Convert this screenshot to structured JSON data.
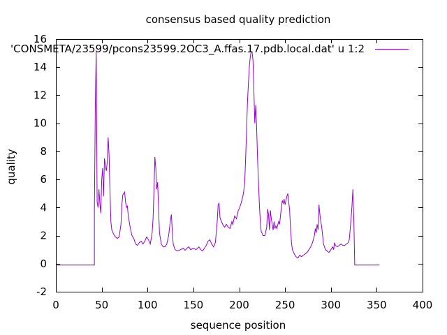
{
  "chart_data": {
    "type": "line",
    "title": "consensus based quality prediction",
    "xlabel": "sequence position",
    "ylabel": "quality",
    "xlim": [
      0,
      400
    ],
    "ylim": [
      -2,
      16
    ],
    "x_ticks": [
      0,
      50,
      100,
      150,
      200,
      250,
      300,
      350,
      400
    ],
    "y_ticks": [
      -2,
      0,
      2,
      4,
      6,
      8,
      10,
      12,
      14,
      16
    ],
    "grid": false,
    "legend_position": "top-right",
    "series": [
      {
        "name": "'CONSMETA/23599/pcons23599.2OC3_A.ffas.17.pdb.local.dat' u 1:2",
        "color": "#9400d3",
        "points": [
          [
            1,
            -0.1
          ],
          [
            42,
            -0.1
          ],
          [
            42,
            3.6
          ],
          [
            43,
            11.2
          ],
          [
            44,
            15.2
          ],
          [
            45,
            4.4
          ],
          [
            46,
            4.0
          ],
          [
            47,
            5.3
          ],
          [
            48,
            4.3
          ],
          [
            49,
            3.6
          ],
          [
            50,
            6.0
          ],
          [
            51,
            6.8
          ],
          [
            52,
            4.8
          ],
          [
            53,
            7.5
          ],
          [
            54,
            7.0
          ],
          [
            55,
            6.6
          ],
          [
            56,
            7.2
          ],
          [
            57,
            9.0
          ],
          [
            58,
            7.8
          ],
          [
            59,
            5.2
          ],
          [
            60,
            3.0
          ],
          [
            61,
            2.4
          ],
          [
            63,
            2.1
          ],
          [
            65,
            1.9
          ],
          [
            67,
            1.8
          ],
          [
            69,
            1.9
          ],
          [
            71,
            2.8
          ],
          [
            72,
            4.2
          ],
          [
            73,
            4.9
          ],
          [
            75,
            5.1
          ],
          [
            76,
            4.4
          ],
          [
            77,
            4.0
          ],
          [
            78,
            4.1
          ],
          [
            79,
            3.4
          ],
          [
            81,
            2.6
          ],
          [
            83,
            2.0
          ],
          [
            85,
            1.8
          ],
          [
            87,
            1.4
          ],
          [
            89,
            1.3
          ],
          [
            91,
            1.5
          ],
          [
            93,
            1.6
          ],
          [
            95,
            1.4
          ],
          [
            97,
            1.6
          ],
          [
            99,
            1.9
          ],
          [
            101,
            1.7
          ],
          [
            103,
            1.4
          ],
          [
            105,
            2.2
          ],
          [
            106,
            3.2
          ],
          [
            107,
            5.2
          ],
          [
            108,
            7.6
          ],
          [
            109,
            6.8
          ],
          [
            110,
            5.3
          ],
          [
            111,
            5.8
          ],
          [
            112,
            4.0
          ],
          [
            113,
            2.2
          ],
          [
            115,
            1.4
          ],
          [
            117,
            1.2
          ],
          [
            119,
            1.2
          ],
          [
            121,
            1.4
          ],
          [
            123,
            2.0
          ],
          [
            125,
            3.1
          ],
          [
            126,
            3.5
          ],
          [
            127,
            2.3
          ],
          [
            128,
            1.4
          ],
          [
            130,
            1.0
          ],
          [
            133,
            0.9
          ],
          [
            136,
            1.0
          ],
          [
            139,
            1.1
          ],
          [
            141,
            0.95
          ],
          [
            143,
            1.1
          ],
          [
            145,
            1.2
          ],
          [
            147,
            1.0
          ],
          [
            150,
            1.1
          ],
          [
            153,
            1.0
          ],
          [
            156,
            1.2
          ],
          [
            158,
            1.0
          ],
          [
            160,
            0.9
          ],
          [
            162,
            1.1
          ],
          [
            164,
            1.3
          ],
          [
            166,
            1.6
          ],
          [
            168,
            1.7
          ],
          [
            170,
            1.4
          ],
          [
            172,
            1.2
          ],
          [
            174,
            1.5
          ],
          [
            176,
            3.0
          ],
          [
            177,
            4.2
          ],
          [
            178,
            4.3
          ],
          [
            179,
            3.3
          ],
          [
            180,
            3.1
          ],
          [
            182,
            2.8
          ],
          [
            184,
            2.6
          ],
          [
            186,
            2.8
          ],
          [
            188,
            2.6
          ],
          [
            190,
            2.5
          ],
          [
            192,
            3.0
          ],
          [
            193,
            2.8
          ],
          [
            195,
            3.4
          ],
          [
            197,
            3.2
          ],
          [
            199,
            3.8
          ],
          [
            200,
            3.9
          ],
          [
            202,
            4.3
          ],
          [
            204,
            4.8
          ],
          [
            205,
            5.2
          ],
          [
            206,
            5.8
          ],
          [
            207,
            7.5
          ],
          [
            208,
            9.5
          ],
          [
            209,
            11.5
          ],
          [
            210,
            12.8
          ],
          [
            211,
            14.0
          ],
          [
            212,
            14.7
          ],
          [
            213,
            15.1
          ],
          [
            214,
            15.1
          ],
          [
            215,
            14.5
          ],
          [
            216,
            12.3
          ],
          [
            217,
            10.0
          ],
          [
            218,
            11.3
          ],
          [
            219,
            9.7
          ],
          [
            220,
            7.5
          ],
          [
            221,
            5.8
          ],
          [
            222,
            4.2
          ],
          [
            223,
            3.0
          ],
          [
            224,
            2.3
          ],
          [
            226,
            2.0
          ],
          [
            228,
            2.0
          ],
          [
            229,
            2.3
          ],
          [
            230,
            2.6
          ],
          [
            231,
            3.9
          ],
          [
            232,
            3.5
          ],
          [
            233,
            2.4
          ],
          [
            234,
            3.8
          ],
          [
            235,
            3.2
          ],
          [
            236,
            2.8
          ],
          [
            237,
            2.4
          ],
          [
            238,
            3.0
          ],
          [
            239,
            2.5
          ],
          [
            240,
            2.7
          ],
          [
            241,
            2.5
          ],
          [
            243,
            3.0
          ],
          [
            244,
            2.8
          ],
          [
            246,
            4.0
          ],
          [
            247,
            4.5
          ],
          [
            248,
            4.3
          ],
          [
            249,
            4.6
          ],
          [
            250,
            4.2
          ],
          [
            251,
            4.5
          ],
          [
            252,
            4.8
          ],
          [
            253,
            5.0
          ],
          [
            254,
            4.4
          ],
          [
            255,
            3.8
          ],
          [
            256,
            2.5
          ],
          [
            257,
            1.5
          ],
          [
            258,
            1.0
          ],
          [
            260,
            0.7
          ],
          [
            262,
            0.5
          ],
          [
            264,
            0.4
          ],
          [
            266,
            0.6
          ],
          [
            268,
            0.5
          ],
          [
            270,
            0.6
          ],
          [
            272,
            0.7
          ],
          [
            274,
            0.8
          ],
          [
            276,
            1.0
          ],
          [
            278,
            1.2
          ],
          [
            280,
            1.5
          ],
          [
            282,
            2.0
          ],
          [
            283,
            2.5
          ],
          [
            284,
            2.2
          ],
          [
            285,
            2.8
          ],
          [
            286,
            2.4
          ],
          [
            287,
            4.2
          ],
          [
            288,
            3.5
          ],
          [
            289,
            3.0
          ],
          [
            290,
            2.6
          ],
          [
            291,
            2.0
          ],
          [
            292,
            1.4
          ],
          [
            294,
            1.0
          ],
          [
            296,
            0.9
          ],
          [
            298,
            0.8
          ],
          [
            300,
            1.0
          ],
          [
            302,
            1.2
          ],
          [
            303,
            1.0
          ],
          [
            304,
            1.5
          ],
          [
            305,
            1.3
          ],
          [
            307,
            1.2
          ],
          [
            309,
            1.3
          ],
          [
            311,
            1.4
          ],
          [
            313,
            1.3
          ],
          [
            315,
            1.3
          ],
          [
            317,
            1.4
          ],
          [
            319,
            1.5
          ],
          [
            320,
            1.7
          ],
          [
            321,
            2.4
          ],
          [
            322,
            3.2
          ],
          [
            323,
            4.1
          ],
          [
            324,
            5.3
          ],
          [
            325,
            3.2
          ],
          [
            326,
            -0.1
          ],
          [
            353,
            -0.1
          ]
        ]
      }
    ]
  }
}
